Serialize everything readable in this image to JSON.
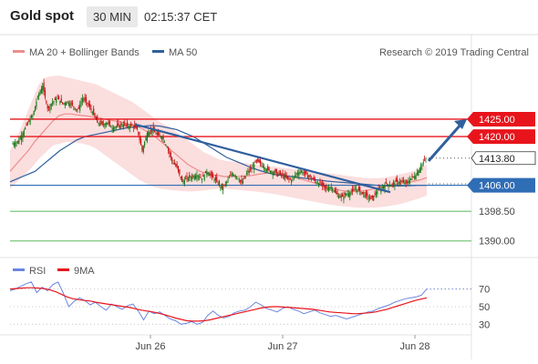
{
  "header": {
    "instrument": "Gold spot",
    "timeframe": "30 MIN",
    "time": "02:15:37 CET"
  },
  "legend": {
    "ma20_bollinger": "MA 20 + Bollinger Bands",
    "ma50": "MA 50",
    "copyright": "Research © 2019 Trading Central",
    "rsi": "RSI",
    "ma9": "9MA"
  },
  "colors": {
    "resistance": "#e8141c",
    "pivot": "#2f6db5",
    "support": "#7bc67b",
    "ma50": "#2f5f9e",
    "ma20": "#ee8d8d",
    "bollinger_fill": "#fbdede",
    "candle_up": "#1a7a1a",
    "candle_down": "#c81414",
    "rsi": "#6b86e0",
    "rsi_ma": "#e8141c"
  },
  "chart_data": [
    {
      "type": "candlestick",
      "title": "Gold spot",
      "timeframe": "30 MIN",
      "x_tick_labels": [
        "Jun 26",
        "Jun 27",
        "Jun 28"
      ],
      "ylim": [
        1386,
        1442
      ],
      "levels": [
        {
          "label": "1425.00",
          "value": 1425.0,
          "kind": "resistance"
        },
        {
          "label": "1420.00",
          "value": 1420.0,
          "kind": "resistance"
        },
        {
          "label": "1413.80",
          "value": 1413.8,
          "kind": "last"
        },
        {
          "label": "1406.00",
          "value": 1406.0,
          "kind": "pivot"
        },
        {
          "label": "1398.50",
          "value": 1398.5,
          "kind": "support"
        },
        {
          "label": "1390.00",
          "value": 1390.0,
          "kind": "support"
        }
      ],
      "close_path": [
        1418,
        1418.5,
        1421,
        1424,
        1426,
        1431.5,
        1434.5,
        1428,
        1430,
        1431,
        1429.5,
        1430,
        1429,
        1427.5,
        1431,
        1429.5,
        1427,
        1424,
        1423.5,
        1424,
        1422.5,
        1423,
        1423.5,
        1423,
        1423.2,
        1422,
        1416,
        1421,
        1422,
        1420.5,
        1420,
        1417,
        1413,
        1411,
        1407,
        1408,
        1408.5,
        1409,
        1408,
        1410,
        1408.5,
        1407,
        1405,
        1407,
        1409.5,
        1408.5,
        1406.5,
        1409.5,
        1411,
        1413,
        1412,
        1410.5,
        1410,
        1409.5,
        1409,
        1408,
        1407.5,
        1409.5,
        1410,
        1409,
        1408,
        1407,
        1406,
        1405,
        1405.5,
        1403.5,
        1402.5,
        1403.5,
        1404,
        1405,
        1404,
        1403,
        1402,
        1404,
        1405,
        1406.5,
        1406,
        1407,
        1407,
        1406.5,
        1408,
        1409,
        1411.5,
        1413.8
      ],
      "moving_averages": [
        {
          "name": "MA 20",
          "values": [
            1410,
            1412,
            1414,
            1416,
            1418.5,
            1420.5,
            1422.5,
            1424.5,
            1426,
            1426.5,
            1426.5,
            1426.2,
            1426,
            1425.8,
            1425.5,
            1425.2,
            1424.8,
            1424.5,
            1424.2,
            1423.8,
            1423.2,
            1422.8,
            1421.8,
            1420.8,
            1419.5,
            1418,
            1416.5,
            1415,
            1413.5,
            1412,
            1411,
            1410,
            1409.5,
            1409,
            1408.8,
            1408.5,
            1408.5,
            1408.5,
            1408.6,
            1408.7,
            1409,
            1409.3,
            1409.5,
            1409.4,
            1409.2,
            1408.9,
            1408.5,
            1408,
            1407.5,
            1407,
            1406.5,
            1406,
            1405.5,
            1405,
            1404.5,
            1404.3,
            1404.2,
            1404.3,
            1404.5,
            1404.8,
            1405.2,
            1405.6,
            1406,
            1406.3,
            1406.5,
            1406.8,
            1407.2,
            1407.6,
            1408.2
          ]
        },
        {
          "name": "MA 50",
          "values": [
            1407,
            1408,
            1409,
            1410,
            1412,
            1414,
            1416,
            1417.5,
            1419,
            1420,
            1420.5,
            1421,
            1421.5,
            1422,
            1422.5,
            1422.8,
            1423,
            1423.2,
            1423,
            1422.5,
            1422,
            1421,
            1420,
            1418.5,
            1417,
            1415.5,
            1414,
            1413,
            1412,
            1411,
            1410.2,
            1409.5,
            1409,
            1408.7,
            1408.4,
            1408.1,
            1407.8,
            1407.5,
            1407.2,
            1407,
            1406.8,
            1406.6,
            1406.4,
            1406.2,
            1406,
            1405.9,
            1405.8,
            1405.8,
            1405.9,
            1406,
            1406
          ]
        }
      ],
      "bollinger_bands": {
        "upper": [
          1416,
          1420,
          1425,
          1430,
          1435,
          1437,
          1437.5,
          1437.5,
          1437,
          1436.5,
          1436,
          1435.5,
          1435,
          1434,
          1433,
          1432,
          1431,
          1430,
          1428.5,
          1427,
          1425.5,
          1424,
          1423,
          1421.5,
          1420,
          1418.5,
          1417,
          1415.5,
          1414.5,
          1413.5,
          1413,
          1412.8,
          1412.5,
          1412.3,
          1412,
          1411.8,
          1411.5,
          1411.3,
          1411,
          1410.8,
          1410.5,
          1410.3,
          1410,
          1409.7,
          1409.5,
          1409.3,
          1409,
          1408.7,
          1408.4,
          1408.2,
          1408,
          1408,
          1408.2,
          1408.5,
          1409,
          1409.5,
          1410,
          1410.8,
          1412
        ],
        "lower": [
          1405,
          1407,
          1409,
          1411,
          1413.5,
          1415.5,
          1417.5,
          1418,
          1418.5,
          1418.3,
          1418,
          1417.5,
          1416.5,
          1415,
          1413.5,
          1412,
          1410.5,
          1409,
          1407.5,
          1406.5,
          1405.5,
          1405,
          1404.7,
          1404.5,
          1404.3,
          1404.2,
          1404.3,
          1404.5,
          1404.8,
          1405,
          1405,
          1404.8,
          1404.6,
          1404.4,
          1404.2,
          1404,
          1403.7,
          1403.4,
          1403,
          1402.6,
          1402.2,
          1401.8,
          1401.4,
          1401,
          1400.6,
          1400.3,
          1400,
          1399.8,
          1399.6,
          1399.5,
          1399.5,
          1399.6,
          1399.8,
          1400.1,
          1400.5,
          1401,
          1401.6,
          1402.3,
          1403
        ]
      },
      "trendline": {
        "from": [
          1423.5,
          1404
        ]
      },
      "projection_arrow": {
        "from": 1413,
        "to": 1425
      }
    },
    {
      "type": "line",
      "title": "RSI",
      "ylim": [
        20,
        82
      ],
      "y_ticks": [
        30,
        50,
        70
      ],
      "series": [
        {
          "name": "RSI",
          "values": [
            68,
            70,
            73,
            76,
            78,
            66,
            72,
            68,
            75,
            78,
            65,
            50,
            56,
            60,
            57,
            52,
            55,
            50,
            46,
            53,
            50,
            47,
            51,
            53,
            45,
            35,
            45,
            42,
            44,
            40,
            36,
            34,
            30,
            31,
            33,
            30,
            32,
            40,
            45,
            40,
            37,
            39,
            43,
            45,
            46,
            50,
            55,
            52,
            48,
            46,
            44,
            48,
            50,
            47,
            45,
            42,
            44,
            46,
            43,
            41,
            39,
            40,
            38,
            36,
            38,
            40,
            42,
            44,
            45,
            48,
            50,
            52,
            55,
            57,
            59,
            60,
            61,
            63,
            70
          ]
        },
        {
          "name": "9MA",
          "values": [
            70,
            70.5,
            71,
            71.5,
            71.5,
            71,
            70.5,
            69,
            67,
            64,
            61,
            59,
            58,
            57,
            56.5,
            55,
            54,
            53,
            52,
            51,
            50,
            49,
            47.5,
            46,
            45,
            44,
            42.5,
            41,
            39,
            37,
            35.5,
            34,
            33.5,
            33.5,
            34,
            35,
            36.5,
            38,
            39.5,
            41,
            42.5,
            44,
            45.5,
            47,
            48.5,
            49.5,
            50,
            50,
            49.5,
            49,
            48.5,
            48,
            47.5,
            47,
            46,
            45,
            44,
            43.5,
            43,
            42.5,
            42,
            42,
            42.5,
            43,
            44,
            45.5,
            47,
            49,
            51,
            53,
            55,
            57,
            58.5,
            60
          ]
        }
      ]
    }
  ]
}
